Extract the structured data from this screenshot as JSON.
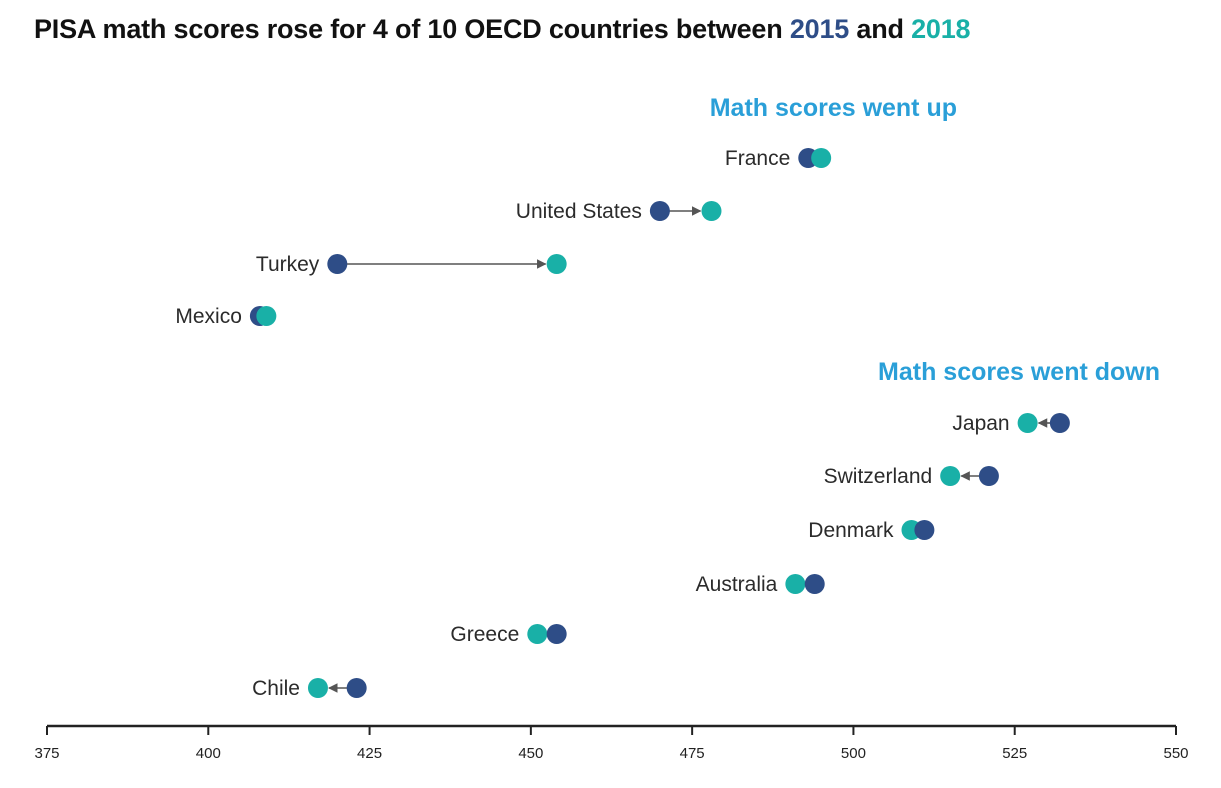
{
  "title": {
    "part1": "PISA math scores rose for 4 of 10 OECD countries between ",
    "year1": "2015",
    "part2": " and ",
    "year2": "2018"
  },
  "colors": {
    "y2015": "#2e4d87",
    "y2018": "#19b0a7",
    "heading": "#2a9fd8",
    "arrow": "#555555",
    "axis": "#222222"
  },
  "chart_data": {
    "type": "dot-plot",
    "title": "PISA math scores rose for 4 of 10 OECD countries between 2015 and 2018",
    "xlabel": "",
    "ylabel": "",
    "xlim": [
      375,
      550
    ],
    "xticks": [
      375,
      400,
      425,
      450,
      475,
      500,
      525,
      550
    ],
    "grid": false,
    "series": [
      {
        "name": "2015",
        "color": "#2e4d87"
      },
      {
        "name": "2018",
        "color": "#19b0a7"
      }
    ],
    "groups": [
      {
        "heading": "Math scores went up",
        "countries": [
          {
            "name": "France",
            "v2015": 493,
            "v2018": 495
          },
          {
            "name": "United States",
            "v2015": 470,
            "v2018": 478
          },
          {
            "name": "Turkey",
            "v2015": 420,
            "v2018": 454
          },
          {
            "name": "Mexico",
            "v2015": 408,
            "v2018": 409
          }
        ]
      },
      {
        "heading": "Math scores went down",
        "countries": [
          {
            "name": "Japan",
            "v2015": 532,
            "v2018": 527
          },
          {
            "name": "Switzerland",
            "v2015": 521,
            "v2018": 515
          },
          {
            "name": "Denmark",
            "v2015": 511,
            "v2018": 509
          },
          {
            "name": "Australia",
            "v2015": 494,
            "v2018": 491
          },
          {
            "name": "Greece",
            "v2015": 454,
            "v2018": 451
          },
          {
            "name": "Chile",
            "v2015": 423,
            "v2018": 417
          }
        ]
      }
    ]
  }
}
